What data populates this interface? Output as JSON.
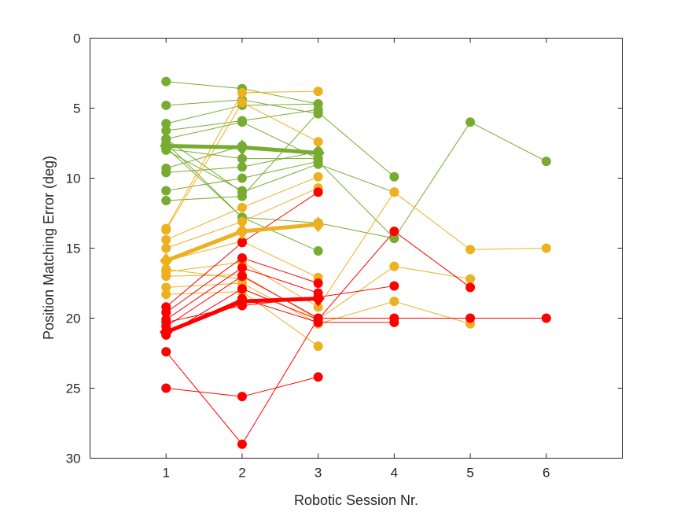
{
  "chart_data": {
    "type": "line",
    "title": "",
    "xlabel": "Robotic Session Nr.",
    "ylabel": "Position Matching Error (deg)",
    "xlim": [
      0,
      7
    ],
    "ylim": [
      0,
      30
    ],
    "y_reversed": true,
    "xticks": [
      1,
      2,
      3,
      4,
      5,
      6
    ],
    "yticks": [
      0,
      5,
      10,
      15,
      20,
      25,
      30
    ],
    "grid": false,
    "legend": "none",
    "colors": {
      "green": "#77ac30",
      "yellow": "#edb120",
      "red": "#ff0000",
      "axis": "#262626"
    },
    "series": [
      {
        "color": "green",
        "x": [
          1,
          2,
          3
        ],
        "y": [
          3.1,
          3.6,
          4.7
        ]
      },
      {
        "color": "green",
        "x": [
          1,
          2,
          3
        ],
        "y": [
          4.8,
          4.4,
          5.4
        ]
      },
      {
        "color": "green",
        "x": [
          1,
          2,
          3
        ],
        "y": [
          6.1,
          4.8,
          4.7
        ]
      },
      {
        "color": "green",
        "x": [
          1,
          2,
          3
        ],
        "y": [
          6.6,
          5.9,
          5.1
        ]
      },
      {
        "color": "green",
        "x": [
          1,
          2,
          3
        ],
        "y": [
          7.2,
          6.0,
          8.6
        ]
      },
      {
        "color": "green",
        "x": [
          1,
          2,
          3
        ],
        "y": [
          7.9,
          8.6,
          8.6
        ]
      },
      {
        "color": "green",
        "x": [
          1,
          2,
          3
        ],
        "y": [
          9.3,
          7.7,
          8.1
        ]
      },
      {
        "color": "green",
        "x": [
          1,
          2,
          3
        ],
        "y": [
          9.6,
          9.2,
          8.1
        ]
      },
      {
        "color": "green",
        "x": [
          1,
          2,
          3,
          4,
          5,
          6
        ],
        "y": [
          10.9,
          10.0,
          8.8,
          14.3,
          6.0,
          8.8
        ]
      },
      {
        "color": "green",
        "x": [
          1,
          2,
          3,
          4
        ],
        "y": [
          11.6,
          11.3,
          5.3,
          9.9
        ]
      },
      {
        "color": "green",
        "x": [
          1,
          2,
          3,
          4
        ],
        "y": [
          7.5,
          12.8,
          13.2,
          14.3
        ]
      },
      {
        "color": "green",
        "x": [
          1,
          2,
          3,
          4
        ],
        "y": [
          7.2,
          11.0,
          9.0,
          11.0
        ]
      },
      {
        "color": "green",
        "x": [
          1,
          2
        ],
        "y": [
          8.0,
          10.9
        ]
      },
      {
        "color": "green",
        "x": [
          1,
          2,
          3
        ],
        "y": [
          7.8,
          12.8,
          15.2
        ]
      },
      {
        "color": "yellow",
        "x": [
          1,
          2,
          3
        ],
        "y": [
          13.6,
          3.9,
          3.8
        ]
      },
      {
        "color": "yellow",
        "x": [
          1,
          2,
          3
        ],
        "y": [
          13.7,
          4.6,
          7.4
        ]
      },
      {
        "color": "yellow",
        "x": [
          1,
          2,
          3
        ],
        "y": [
          14.4,
          12.1,
          9.9
        ]
      },
      {
        "color": "yellow",
        "x": [
          1,
          2,
          3
        ],
        "y": [
          15.0,
          13.1,
          10.7
        ]
      },
      {
        "color": "yellow",
        "x": [
          1,
          2,
          3
        ],
        "y": [
          15.9,
          14.5,
          17.1
        ]
      },
      {
        "color": "yellow",
        "x": [
          1,
          2,
          3,
          4,
          5,
          6
        ],
        "y": [
          16.7,
          16.0,
          19.2,
          11.0,
          15.1,
          15.0
        ]
      },
      {
        "color": "yellow",
        "x": [
          1,
          2,
          3,
          4,
          5
        ],
        "y": [
          17.0,
          16.9,
          20.1,
          16.3,
          17.2
        ]
      },
      {
        "color": "yellow",
        "x": [
          1,
          2,
          3,
          4,
          5
        ],
        "y": [
          17.8,
          17.5,
          20.4,
          18.8,
          20.4
        ]
      },
      {
        "color": "yellow",
        "x": [
          1,
          2,
          3
        ],
        "y": [
          18.3,
          18.1,
          22.0
        ]
      },
      {
        "color": "yellow",
        "x": [
          1,
          2
        ],
        "y": [
          16.5,
          17.2
        ]
      },
      {
        "color": "red",
        "x": [
          1,
          2,
          3
        ],
        "y": [
          19.2,
          14.6,
          11.0
        ]
      },
      {
        "color": "red",
        "x": [
          1,
          2,
          3
        ],
        "y": [
          19.6,
          15.7,
          17.5
        ]
      },
      {
        "color": "red",
        "x": [
          1,
          2,
          3
        ],
        "y": [
          20.1,
          16.4,
          18.2
        ]
      },
      {
        "color": "red",
        "x": [
          1,
          2,
          3,
          4,
          5,
          6
        ],
        "y": [
          20.6,
          17.0,
          20.0,
          20.0,
          20.0,
          20.0
        ]
      },
      {
        "color": "red",
        "x": [
          1,
          2,
          3,
          4
        ],
        "y": [
          21.0,
          18.6,
          20.3,
          20.3
        ]
      },
      {
        "color": "red",
        "x": [
          1,
          2,
          3,
          4
        ],
        "y": [
          20.3,
          19.1,
          18.5,
          17.7
        ]
      },
      {
        "color": "red",
        "x": [
          1,
          2,
          3,
          4,
          5
        ],
        "y": [
          21.2,
          17.9,
          20.1,
          13.8,
          17.8
        ]
      },
      {
        "color": "red",
        "x": [
          1,
          2,
          3
        ],
        "y": [
          22.4,
          29.0,
          20.0
        ]
      },
      {
        "color": "red",
        "x": [
          1,
          2,
          3
        ],
        "y": [
          25.0,
          25.6,
          24.2
        ]
      }
    ],
    "mean_series": [
      {
        "color": "green",
        "x": [
          1,
          2,
          3
        ],
        "y": [
          7.7,
          7.8,
          8.2
        ]
      },
      {
        "color": "yellow",
        "x": [
          1,
          2,
          3
        ],
        "y": [
          15.9,
          13.8,
          13.3
        ]
      },
      {
        "color": "red",
        "x": [
          1,
          2,
          3
        ],
        "y": [
          21.0,
          18.8,
          18.6
        ]
      }
    ]
  }
}
